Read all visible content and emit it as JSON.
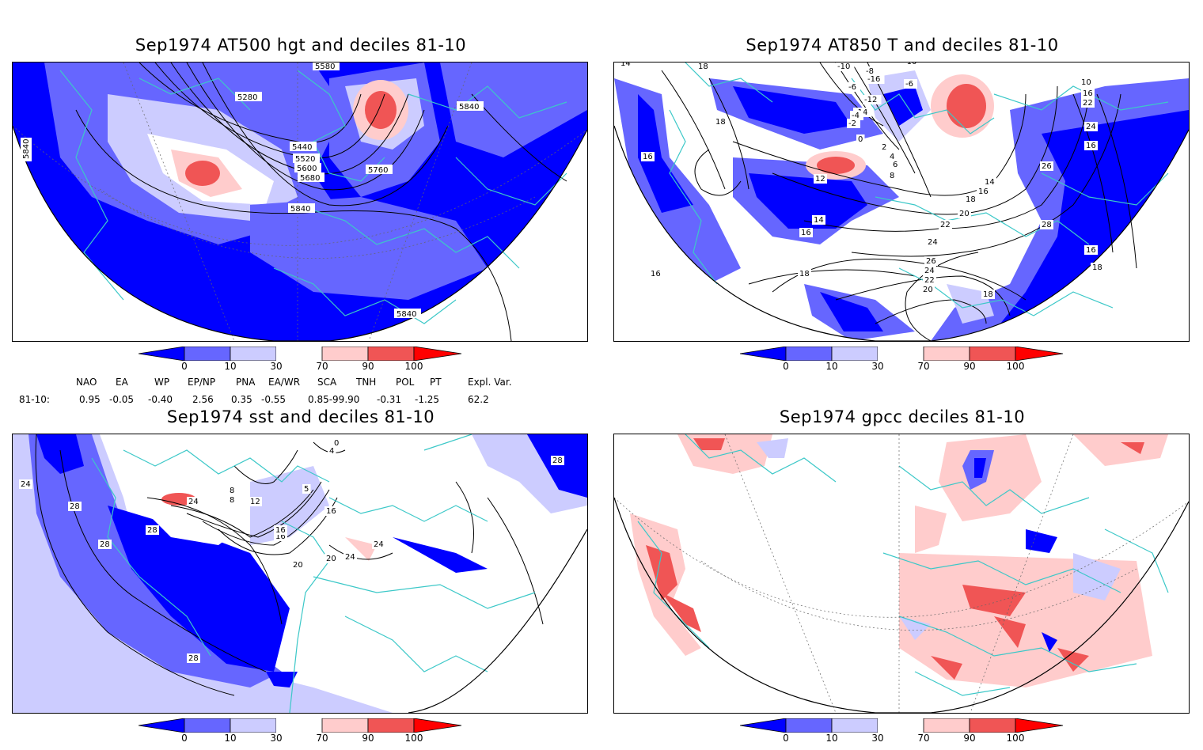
{
  "panels": [
    {
      "id": "tl",
      "title": "Sep1974 AT500 hgt and deciles 81-10",
      "contour_labels": [
        "5580",
        "5280",
        "5840",
        "5840",
        "5440",
        "5520",
        "5600",
        "5680",
        "5760",
        "5840",
        "5840"
      ]
    },
    {
      "id": "tr",
      "title": "Sep1974 AT850 T and deciles 81-10",
      "contour_labels": [
        "14",
        "18",
        "18",
        "16",
        "-10",
        "-8",
        "-10",
        "-6",
        "-16",
        "-6",
        "-12",
        "-14",
        "-2",
        "-4",
        "0",
        "2",
        "4",
        "6",
        "8",
        "12",
        "14",
        "16",
        "14",
        "16",
        "18",
        "20",
        "22",
        "24",
        "26",
        "24",
        "22",
        "20",
        "18",
        "16",
        "10",
        "16",
        "22",
        "24",
        "26",
        "28",
        "18",
        "16",
        "18",
        "16"
      ]
    },
    {
      "id": "bl",
      "title": "Sep1974 sst and deciles 81-10",
      "contour_labels": [
        "24",
        "28",
        "28",
        "28",
        "24",
        "8",
        "8",
        "12",
        "16",
        "16",
        "20",
        "20",
        "16",
        "24",
        "24",
        "5",
        "4",
        "0",
        "28",
        "28"
      ]
    },
    {
      "id": "br",
      "title": "Sep1974 gpcc deciles 81-10",
      "contour_labels": []
    }
  ],
  "colorbar": {
    "ticks": [
      "0",
      "10",
      "30",
      "70",
      "90",
      "100"
    ],
    "colors": {
      "below_0": "#0000ff",
      "b0_10": "#6666ff",
      "b10_30": "#ccccff",
      "b30_70": "#ffffff",
      "b70_90": "#ffcccc",
      "b90_100": "#f05555",
      "above_100": "#ff0000"
    }
  },
  "indices": {
    "row_label": "81-10:",
    "columns": [
      {
        "name": "NAO",
        "value": "0.95"
      },
      {
        "name": "EA",
        "value": "-0.05"
      },
      {
        "name": "WP",
        "value": "-0.40"
      },
      {
        "name": "EP/NP",
        "value": "2.56"
      },
      {
        "name": "PNA",
        "value": "0.35"
      },
      {
        "name": "EA/WR",
        "value": "-0.55"
      },
      {
        "name": "SCA",
        "value": "0.85-99.90"
      },
      {
        "name": "TNH",
        "value": "-0.31"
      },
      {
        "name": "POL",
        "value": "-1.25"
      },
      {
        "name": "PT",
        "value": ""
      },
      {
        "name": "Expl. Var.",
        "value": "62.2"
      }
    ]
  },
  "colors": {
    "coastline": "#3cc8c8",
    "contour": "#000000",
    "frame": "#000000"
  }
}
